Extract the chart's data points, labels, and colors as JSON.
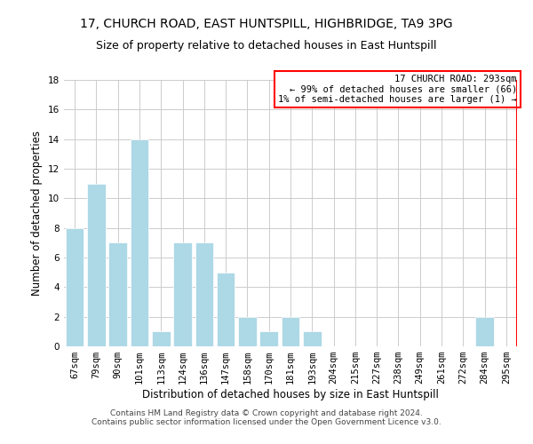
{
  "title": "17, CHURCH ROAD, EAST HUNTSPILL, HIGHBRIDGE, TA9 3PG",
  "subtitle": "Size of property relative to detached houses in East Huntspill",
  "xlabel": "Distribution of detached houses by size in East Huntspill",
  "ylabel": "Number of detached properties",
  "bar_labels": [
    "67sqm",
    "79sqm",
    "90sqm",
    "101sqm",
    "113sqm",
    "124sqm",
    "136sqm",
    "147sqm",
    "158sqm",
    "170sqm",
    "181sqm",
    "193sqm",
    "204sqm",
    "215sqm",
    "227sqm",
    "238sqm",
    "249sqm",
    "261sqm",
    "272sqm",
    "284sqm",
    "295sqm"
  ],
  "bar_values": [
    8,
    11,
    7,
    14,
    1,
    7,
    7,
    5,
    2,
    1,
    2,
    1,
    0,
    0,
    0,
    0,
    0,
    0,
    0,
    2,
    0
  ],
  "bar_color": "#add8e6",
  "marker_line_color": "#ff0000",
  "marker_line_index": 20,
  "ylim": [
    0,
    18
  ],
  "yticks": [
    0,
    2,
    4,
    6,
    8,
    10,
    12,
    14,
    16,
    18
  ],
  "annotation_title": "17 CHURCH ROAD: 293sqm",
  "annotation_line1": "← 99% of detached houses are smaller (66)",
  "annotation_line2": "1% of semi-detached houses are larger (1) →",
  "annotation_box_color": "#ffffff",
  "annotation_border_color": "#ff0000",
  "footer_line1": "Contains HM Land Registry data © Crown copyright and database right 2024.",
  "footer_line2": "Contains public sector information licensed under the Open Government Licence v3.0.",
  "background_color": "#ffffff",
  "grid_color": "#cccccc",
  "title_fontsize": 10,
  "subtitle_fontsize": 9,
  "axis_label_fontsize": 8.5,
  "tick_fontsize": 7.5,
  "annotation_fontsize": 7.5,
  "footer_fontsize": 6.5
}
